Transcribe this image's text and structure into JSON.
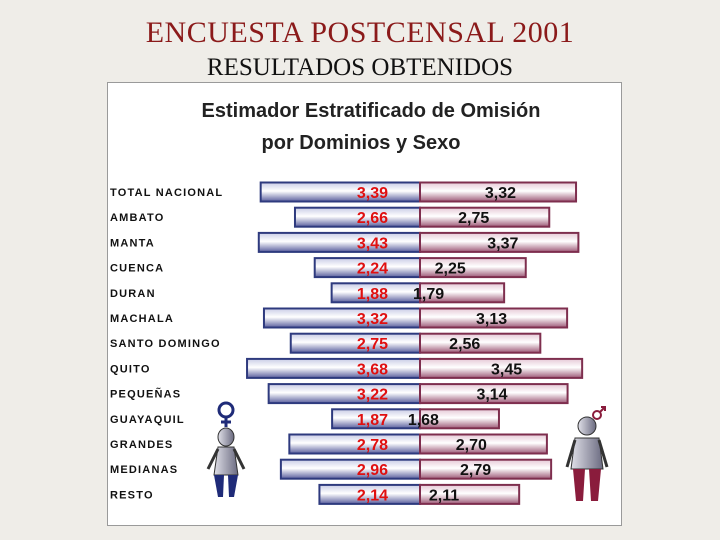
{
  "slide": {
    "title": "ENCUESTA POSTCENSAL 2001",
    "subtitle": "RESULTADOS OBTENIDOS"
  },
  "colors": {
    "background": "#efede8",
    "title": "#8b1a1a",
    "female_bar": "#2e3a7e",
    "male_bar": "#7e2e4e",
    "female_label": "#e01010",
    "male_label": "#111111",
    "female_figure": "#1f2b78",
    "male_figure": "#8a1c3c"
  },
  "chart_data": {
    "type": "bar",
    "orientation": "horizontal-diverging",
    "title": "Estimador Estratificado de Omisión",
    "subtitle": "por Dominios y Sexo",
    "categories": [
      "TOTAL NACIONAL",
      "AMBATO",
      "MANTA",
      "CUENCA",
      "DURAN",
      "MACHALA",
      "SANTO DOMINGO",
      "QUITO",
      "PEQUEÑAS",
      "GUAYAQUIL",
      "GRANDES",
      "MEDIANAS",
      "RESTO"
    ],
    "series": [
      {
        "name": "Mujeres",
        "icon": "female-figure-icon",
        "values": [
          3.39,
          2.66,
          3.43,
          2.24,
          1.88,
          3.32,
          2.75,
          3.68,
          3.22,
          1.87,
          2.78,
          2.96,
          2.14
        ],
        "labels": [
          "3,39",
          "2,66",
          "3,43",
          "2,24",
          "1,88",
          "3,32",
          "2,75",
          "3,68",
          "3,22",
          "1,87",
          "2,78",
          "2,96",
          "2,14"
        ]
      },
      {
        "name": "Hombres",
        "icon": "male-figure-icon",
        "values": [
          3.32,
          2.75,
          3.37,
          2.25,
          1.79,
          3.13,
          2.56,
          3.45,
          3.14,
          1.68,
          2.7,
          2.79,
          2.11
        ],
        "labels": [
          "3,32",
          "2,75",
          "3,37",
          "2,25",
          "1,79",
          "3,13",
          "2,56",
          "3,45",
          "3,14",
          "1,68",
          "2,70",
          "2,79",
          "2,11"
        ]
      }
    ],
    "legend": "none",
    "grid": false
  }
}
